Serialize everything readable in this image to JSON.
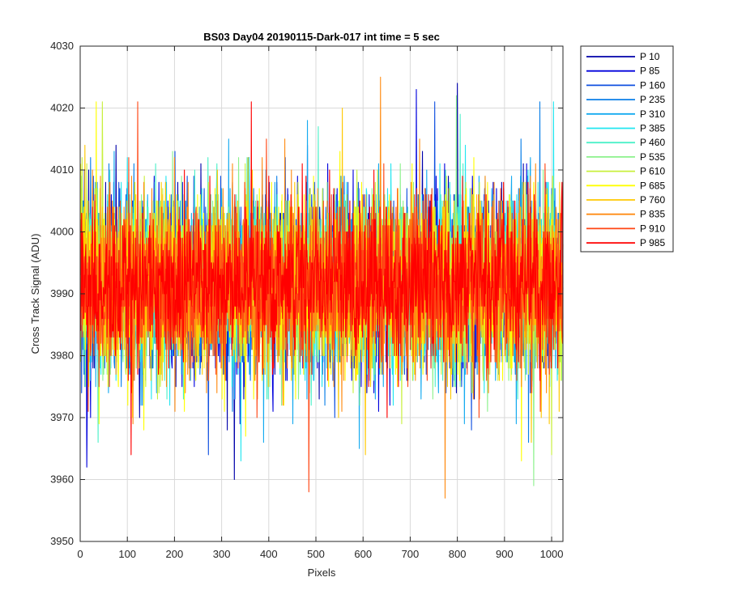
{
  "chart_data": {
    "type": "line",
    "title": "BS03 Day04 20190115-Dark-017 int time = 5 sec",
    "xlabel": "Pixels",
    "ylabel": "Cross Track Signal (ADU)",
    "xlim": [
      0,
      1024
    ],
    "ylim": [
      3950,
      4030
    ],
    "xticks": [
      0,
      100,
      200,
      300,
      400,
      500,
      600,
      700,
      800,
      900,
      1000
    ],
    "yticks": [
      3950,
      3960,
      3970,
      3980,
      3990,
      4000,
      4010,
      4020,
      4030
    ],
    "grid": true,
    "legend_position": "outside-top-right",
    "n_points": 1024,
    "series": [
      {
        "name": "P 10",
        "color": "#0000aa",
        "mean": 3991.5,
        "std": 7,
        "min": 3960,
        "max": 4024
      },
      {
        "name": "P 85",
        "color": "#0000dd",
        "mean": 3991.5,
        "std": 7,
        "min": 3962,
        "max": 4023
      },
      {
        "name": "P 160",
        "color": "#1050e0",
        "mean": 3991.5,
        "std": 7,
        "min": 3964,
        "max": 4021
      },
      {
        "name": "P 235",
        "color": "#0a7fe8",
        "mean": 3991.5,
        "std": 7,
        "min": 3966,
        "max": 4021
      },
      {
        "name": "P 310",
        "color": "#14aaf0",
        "mean": 3991.5,
        "std": 7,
        "min": 3965,
        "max": 4018
      },
      {
        "name": "P 385",
        "color": "#22e6f0",
        "mean": 3991.5,
        "std": 7,
        "min": 3963,
        "max": 4021
      },
      {
        "name": "P 460",
        "color": "#4cf0c8",
        "mean": 3991.5,
        "std": 7,
        "min": 3966,
        "max": 4019
      },
      {
        "name": "P 535",
        "color": "#8cf28c",
        "mean": 3991.5,
        "std": 7,
        "min": 3959,
        "max": 4022
      },
      {
        "name": "P 610",
        "color": "#c8f03c",
        "mean": 3991.5,
        "std": 7,
        "min": 3964,
        "max": 4021
      },
      {
        "name": "P 685",
        "color": "#ffff00",
        "mean": 3991.5,
        "std": 7,
        "min": 3963,
        "max": 4021
      },
      {
        "name": "P 760",
        "color": "#ffc800",
        "mean": 3991.5,
        "std": 7,
        "min": 3964,
        "max": 4020
      },
      {
        "name": "P 835",
        "color": "#ff8c14",
        "mean": 3991.5,
        "std": 7,
        "min": 3957,
        "max": 4025
      },
      {
        "name": "P 910",
        "color": "#ff4614",
        "mean": 3991.5,
        "std": 7,
        "min": 3958,
        "max": 4021
      },
      {
        "name": "P 985",
        "color": "#ff0000",
        "mean": 3991.5,
        "std": 6,
        "min": 3964,
        "max": 4021
      }
    ]
  }
}
